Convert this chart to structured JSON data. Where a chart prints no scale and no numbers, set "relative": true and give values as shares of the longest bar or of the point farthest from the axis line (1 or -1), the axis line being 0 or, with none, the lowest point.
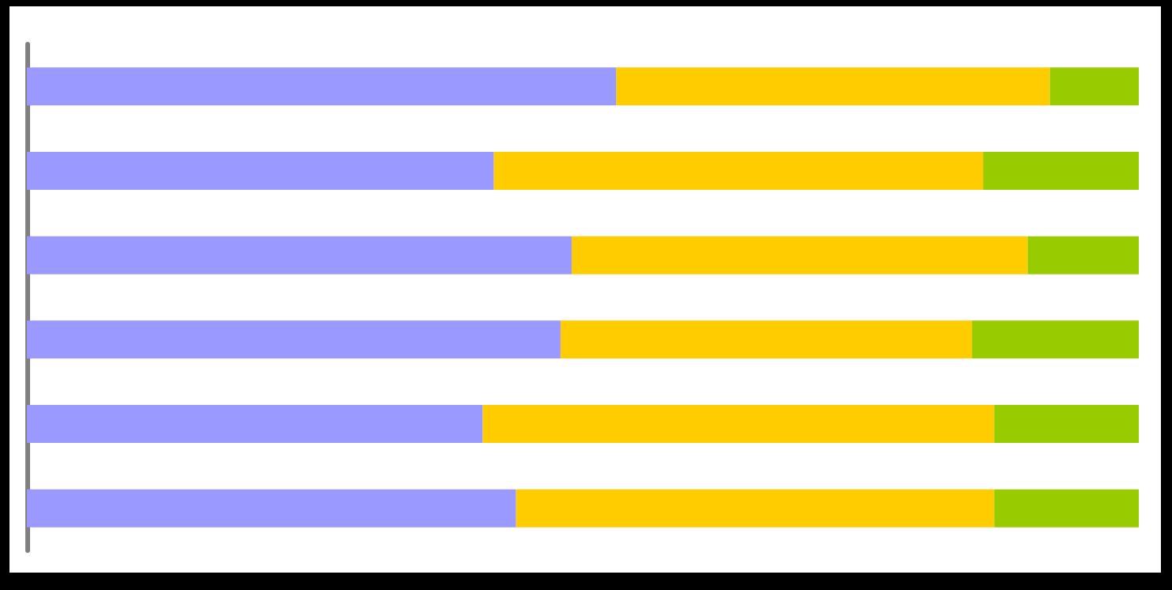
{
  "chart_data": {
    "type": "bar",
    "orientation": "horizontal",
    "stacked": true,
    "relative": true,
    "categories": [
      null,
      null,
      null,
      null,
      null,
      null
    ],
    "series": [
      {
        "color": "#9999ff",
        "values": [
          0.53,
          0.42,
          0.49,
          0.48,
          0.41,
          0.44
        ]
      },
      {
        "color": "#ffcc00",
        "values": [
          0.39,
          0.44,
          0.41,
          0.37,
          0.46,
          0.43
        ]
      },
      {
        "color": "#99cc00",
        "values": [
          0.08,
          0.14,
          0.1,
          0.15,
          0.13,
          0.13
        ]
      }
    ]
  }
}
